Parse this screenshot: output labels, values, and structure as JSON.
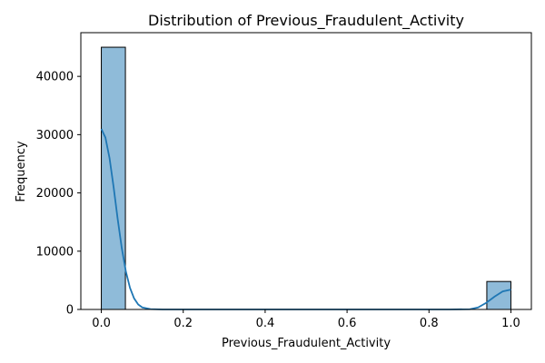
{
  "chart_data": {
    "type": "bar",
    "title": "Distribution of Previous_Fraudulent_Activity",
    "xlabel": "Previous_Fraudulent_Activity",
    "ylabel": "Frequency",
    "xlim": [
      -0.05,
      1.05
    ],
    "ylim": [
      0,
      47500
    ],
    "x_ticks": [
      0.0,
      0.2,
      0.4,
      0.6,
      0.8,
      1.0
    ],
    "x_tick_labels": [
      "0.0",
      "0.2",
      "0.4",
      "0.6",
      "0.8",
      "1.0"
    ],
    "y_ticks": [
      0,
      10000,
      20000,
      30000,
      40000
    ],
    "y_tick_labels": [
      "0",
      "10000",
      "20000",
      "30000",
      "40000"
    ],
    "bars": [
      {
        "x_start": 0.0,
        "x_end": 0.0588,
        "value": 45000
      },
      {
        "x_start": 0.9412,
        "x_end": 1.0,
        "value": 4800
      }
    ],
    "kde": {
      "x": [
        0.0,
        0.01,
        0.02,
        0.03,
        0.04,
        0.05,
        0.06,
        0.07,
        0.08,
        0.09,
        0.1,
        0.12,
        0.15,
        0.2,
        0.5,
        0.85,
        0.9,
        0.92,
        0.94,
        0.96,
        0.98,
        1.0
      ],
      "y": [
        31000,
        29500,
        26000,
        21000,
        15500,
        10500,
        6500,
        3700,
        1900,
        850,
        350,
        60,
        5,
        0,
        0,
        0,
        40,
        350,
        1150,
        2200,
        3100,
        3400
      ]
    },
    "grid": false,
    "colors": {
      "bar_fill": "#8ebad9",
      "bar_edge": "#000000",
      "kde_line": "#1f77b4"
    }
  }
}
